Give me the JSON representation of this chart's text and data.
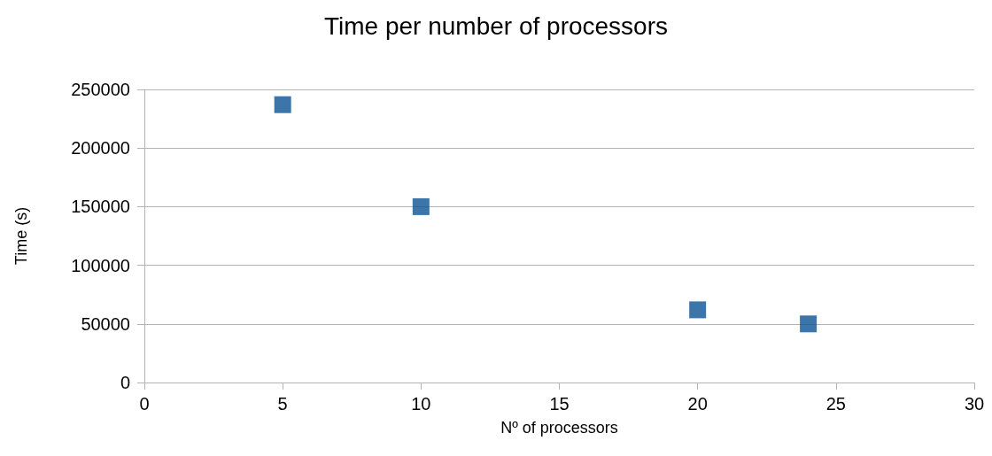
{
  "chart_data": {
    "type": "scatter",
    "title": "Time per number of processors",
    "xlabel": "Nº of processors",
    "ylabel": "Time (s)",
    "x": [
      5,
      10,
      20,
      24
    ],
    "series": [
      {
        "color": "#0b5394",
        "values": [
          237000,
          150000,
          62000,
          50000
        ]
      }
    ],
    "xlim": [
      0,
      30
    ],
    "xticks": [
      0,
      5,
      10,
      15,
      20,
      25,
      30
    ],
    "ylim": [
      0,
      250000
    ],
    "yticks": [
      0,
      50000,
      100000,
      150000,
      200000,
      250000
    ],
    "grid": "y",
    "marker": "square"
  }
}
